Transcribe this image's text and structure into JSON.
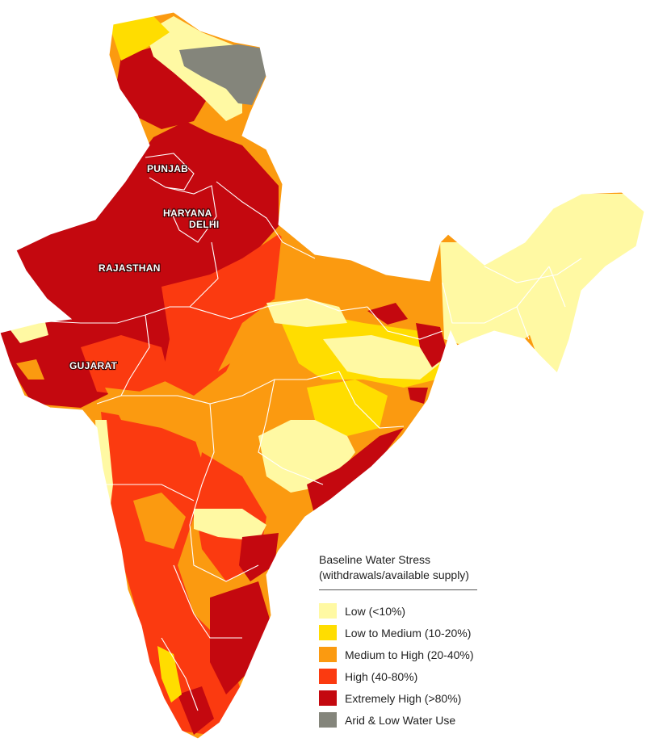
{
  "map": {
    "labels": {
      "punjab": "PUNJAB",
      "haryana": "HARYANA",
      "delhi": "DELHI",
      "rajasthan": "RAJASTHAN",
      "gujarat": "GUJARAT"
    }
  },
  "legend": {
    "title_line1": "Baseline Water Stress",
    "title_line2": "(withdrawals/available supply)",
    "items": [
      {
        "label": "Low (<10%)",
        "color": "#fff9a3"
      },
      {
        "label": "Low to Medium (10-20%)",
        "color": "#ffdd00"
      },
      {
        "label": "Medium to High (20-40%)",
        "color": "#fb9a10"
      },
      {
        "label": "High (40-80%)",
        "color": "#fb3a10"
      },
      {
        "label": "Extremely High (>80%)",
        "color": "#c4080f"
      },
      {
        "label": "Arid & Low Water Use",
        "color": "#84857b"
      }
    ]
  }
}
